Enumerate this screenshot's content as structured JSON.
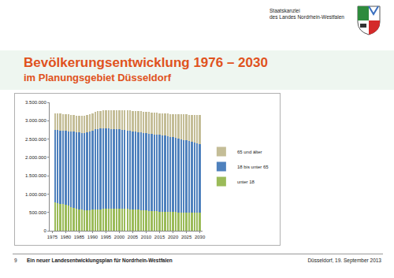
{
  "chart_data": {
    "type": "bar",
    "stacked": true,
    "title": "Bevölkerungsentwicklung 1976 – 2030",
    "subtitle": "im Planungsgebiet Düsseldorf",
    "x": [
      1976,
      1977,
      1978,
      1979,
      1980,
      1981,
      1982,
      1983,
      1984,
      1985,
      1986,
      1987,
      1988,
      1989,
      1990,
      1991,
      1992,
      1993,
      1994,
      1995,
      1996,
      1997,
      1998,
      1999,
      2000,
      2001,
      2002,
      2003,
      2004,
      2005,
      2006,
      2007,
      2008,
      2009,
      2010,
      2011,
      2012,
      2013,
      2014,
      2015,
      2016,
      2017,
      2018,
      2019,
      2020,
      2021,
      2022,
      2023,
      2024,
      2025,
      2026,
      2027,
      2028,
      2029,
      2030
    ],
    "series": [
      {
        "name": "unter 18",
        "color": "#9bbb59",
        "values": [
          780000,
          760000,
          740000,
          720000,
          700000,
          680000,
          655000,
          630000,
          605000,
          585000,
          570000,
          560000,
          560000,
          565000,
          570000,
          578000,
          585000,
          590000,
          595000,
          598000,
          600000,
          602000,
          603000,
          603000,
          602000,
          600000,
          597000,
          593000,
          588000,
          582000,
          576000,
          570000,
          564000,
          558000,
          552000,
          546000,
          540000,
          535000,
          530000,
          526000,
          522000,
          518000,
          515000,
          512000,
          509000,
          506000,
          503000,
          500000,
          498000,
          496000,
          494000,
          492000,
          490000,
          488000,
          486000
        ]
      },
      {
        "name": "18 bis unter 65",
        "color": "#4f81bd",
        "values": [
          1970000,
          1980000,
          1990000,
          2005000,
          2020000,
          2035000,
          2055000,
          2070000,
          2085000,
          2095000,
          2100000,
          2110000,
          2120000,
          2135000,
          2160000,
          2182000,
          2195000,
          2200000,
          2195000,
          2192000,
          2185000,
          2178000,
          2172000,
          2167000,
          2158000,
          2150000,
          2143000,
          2137000,
          2132000,
          2128000,
          2124000,
          2120000,
          2116000,
          2112000,
          2108000,
          2104000,
          2100000,
          2095000,
          2090000,
          2084000,
          2078000,
          2072000,
          2060000,
          2048000,
          2036000,
          2024000,
          2012000,
          2000000,
          1982000,
          1964000,
          1946000,
          1928000,
          1910000,
          1892000,
          1874000
        ]
      },
      {
        "name": "65 und älter",
        "color": "#c4bd97",
        "values": [
          450000,
          455000,
          460000,
          460000,
          460000,
          460000,
          455000,
          455000,
          450000,
          450000,
          455000,
          460000,
          470000,
          480000,
          480000,
          480000,
          480000,
          480000,
          485000,
          490000,
          495000,
          500000,
          505000,
          512000,
          522000,
          532000,
          542000,
          550000,
          557000,
          563000,
          568000,
          572000,
          575000,
          578000,
          580000,
          582000,
          585000,
          588000,
          592000,
          596000,
          600000,
          605000,
          615000,
          626000,
          637000,
          648000,
          660000,
          672000,
          690000,
          708000,
          726000,
          744000,
          762000,
          780000,
          798000
        ]
      }
    ],
    "xlim": [
      1974,
      2031
    ],
    "xticks": [
      1975,
      1980,
      1985,
      1990,
      1995,
      2000,
      2005,
      2010,
      2015,
      2020,
      2025,
      2030
    ],
    "ylim": [
      0,
      3500000
    ],
    "yticks": [
      0,
      {
        "value": 500000,
        "label": "500.000"
      },
      {
        "value": 1000000,
        "label": "1.000.000"
      },
      {
        "value": 1500000,
        "label": "1.500.000"
      },
      {
        "value": 2000000,
        "label": "2.000.000"
      },
      {
        "value": 2500000,
        "label": "2.500.000"
      },
      {
        "value": 3000000,
        "label": "3.000.000"
      },
      {
        "value": 3500000,
        "label": "3.500.000"
      }
    ],
    "grid": false,
    "legend": "right"
  },
  "slide": {
    "header": [
      "Staatskanzlei",
      "des Landes Nordrhein-Westfalen"
    ],
    "footer": {
      "page": "9",
      "text": "Ein neuer Landesentwicklungsplan für Nordrhein-Westfalen",
      "date": "Düsseldorf, 19. September 2013"
    }
  }
}
